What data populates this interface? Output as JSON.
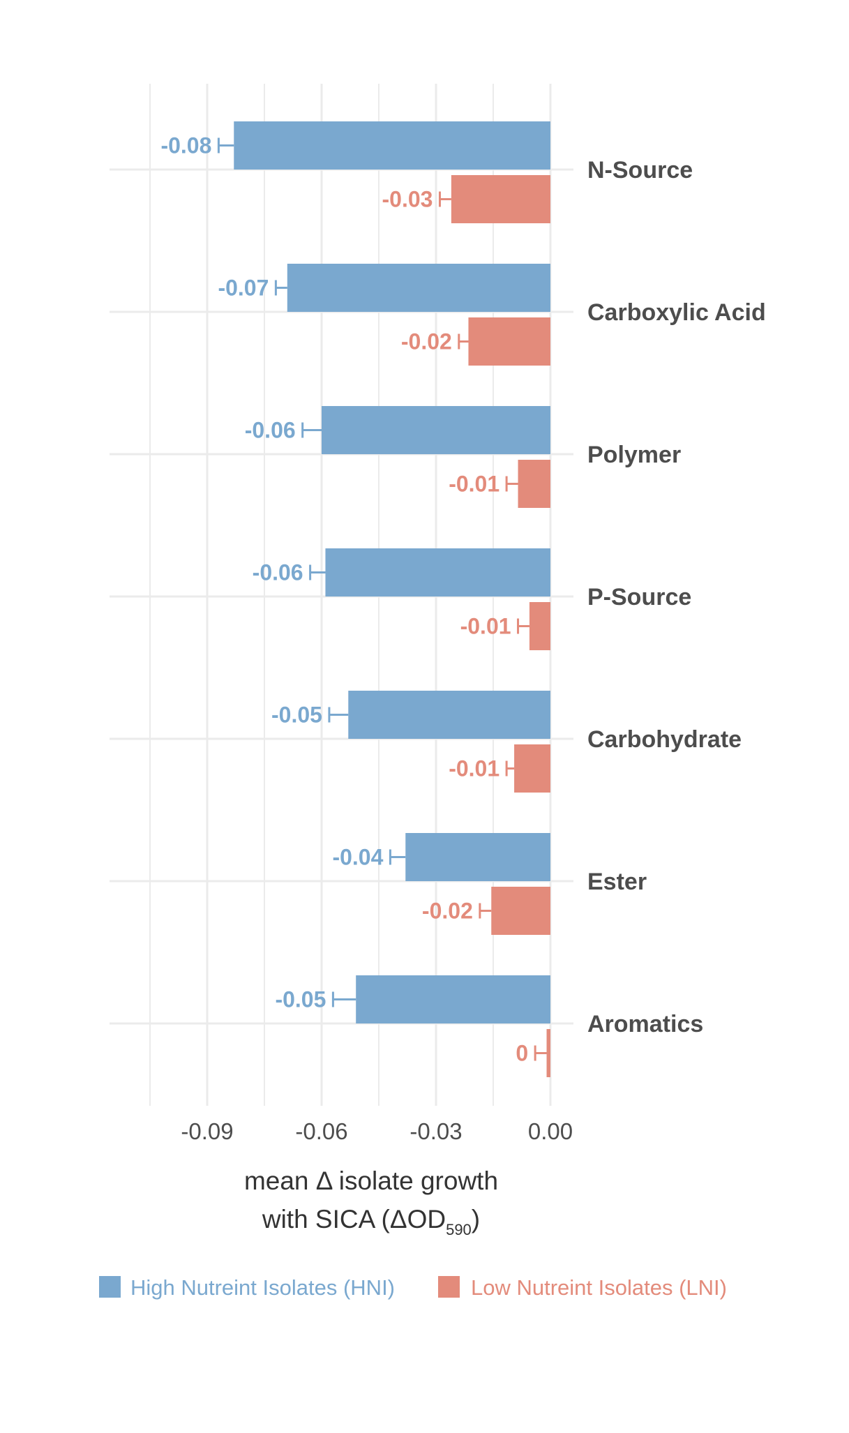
{
  "chart_data": {
    "type": "bar",
    "orientation": "horizontal",
    "categories": [
      "N-Source",
      "Carboxylic Acid",
      "Polymer",
      "P-Source",
      "Carbohydrate",
      "Ester",
      "Aromatics"
    ],
    "series": [
      {
        "name": "High Nutreint Isolates (HNI)",
        "color": "#7aa8cf",
        "label_color": "#7aa8cf",
        "values": [
          -0.083,
          -0.069,
          -0.06,
          -0.059,
          -0.053,
          -0.038,
          -0.051
        ],
        "error": [
          0.004,
          0.003,
          0.005,
          0.004,
          0.005,
          0.004,
          0.006
        ],
        "labels": [
          "-0.08",
          "-0.07",
          "-0.06",
          "-0.06",
          "-0.05",
          "-0.04",
          "-0.05"
        ]
      },
      {
        "name": "Low Nutreint Isolates (LNI)",
        "color": "#e38b7b",
        "label_color": "#e38b7b",
        "values": [
          -0.026,
          -0.0215,
          -0.0085,
          -0.0055,
          -0.0095,
          -0.0155,
          -0.001
        ],
        "error": [
          0.003,
          0.0025,
          0.003,
          0.003,
          0.002,
          0.003,
          0.003
        ],
        "labels": [
          "-0.03",
          "-0.02",
          "-0.01",
          "-0.01",
          "-0.01",
          "-0.02",
          "0"
        ]
      }
    ],
    "xlim": [
      -0.105,
      0.0
    ],
    "xticks": [
      -0.09,
      -0.06,
      -0.03,
      0.0
    ],
    "xtick_labels": [
      "-0.09",
      "-0.06",
      "-0.03",
      "0.00"
    ],
    "xlabel_line1": "mean Δ isolate growth",
    "xlabel_line2_prefix": "with SICA (ΔOD",
    "xlabel_subscript": "590",
    "xlabel_line2_suffix": ")",
    "grid": true,
    "legend_position": "bottom"
  }
}
